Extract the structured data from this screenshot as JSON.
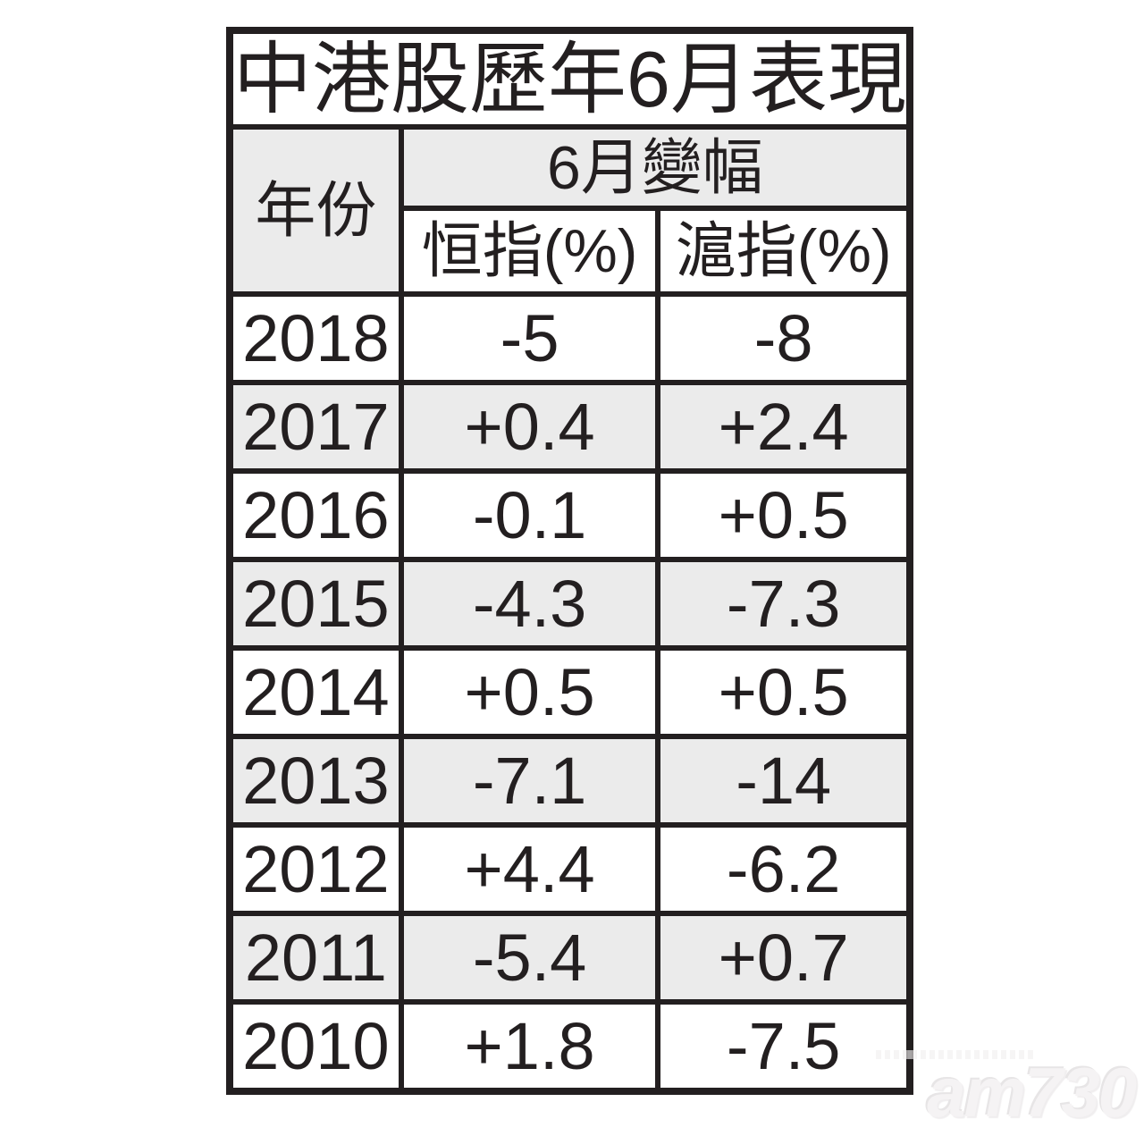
{
  "page": {
    "title": "中港股歷年6月表現"
  },
  "table": {
    "year_header": "年份",
    "group_header": "6月變幅",
    "columns": [
      "恒指(%)",
      "滬指(%)"
    ],
    "rows": [
      {
        "year": "2018",
        "hsi": "-5",
        "sse": "-8"
      },
      {
        "year": "2017",
        "hsi": "+0.4",
        "sse": "+2.4"
      },
      {
        "year": "2016",
        "hsi": "-0.1",
        "sse": "+0.5"
      },
      {
        "year": "2015",
        "hsi": "-4.3",
        "sse": "-7.3"
      },
      {
        "year": "2014",
        "hsi": "+0.5",
        "sse": "+0.5"
      },
      {
        "year": "2013",
        "hsi": "-7.1",
        "sse": "-14"
      },
      {
        "year": "2012",
        "hsi": "+4.4",
        "sse": "-6.2"
      },
      {
        "year": "2011",
        "hsi": "-5.4",
        "sse": "+0.7"
      },
      {
        "year": "2010",
        "hsi": "+1.8",
        "sse": "-7.5"
      }
    ]
  },
  "watermark": "am730",
  "colors": {
    "ink": "#231f20",
    "row_shade": "#ebebeb",
    "background": "#ffffff"
  },
  "chart_data": {
    "type": "table",
    "title": "中港股歷年6月表現",
    "group_header": "6月變幅",
    "categories": [
      "2018",
      "2017",
      "2016",
      "2015",
      "2014",
      "2013",
      "2012",
      "2011",
      "2010"
    ],
    "series": [
      {
        "name": "恒指(%)",
        "values": [
          -5,
          0.4,
          -0.1,
          -4.3,
          0.5,
          -7.1,
          4.4,
          -5.4,
          1.8
        ]
      },
      {
        "name": "滬指(%)",
        "values": [
          -8,
          2.4,
          0.5,
          -7.3,
          0.5,
          -14,
          -6.2,
          0.7,
          -7.5
        ]
      }
    ],
    "layout": {
      "shaded_row_years": [
        "2017",
        "2015",
        "2013",
        "2011"
      ],
      "legend_position": "none",
      "grid": "table-borders"
    }
  }
}
